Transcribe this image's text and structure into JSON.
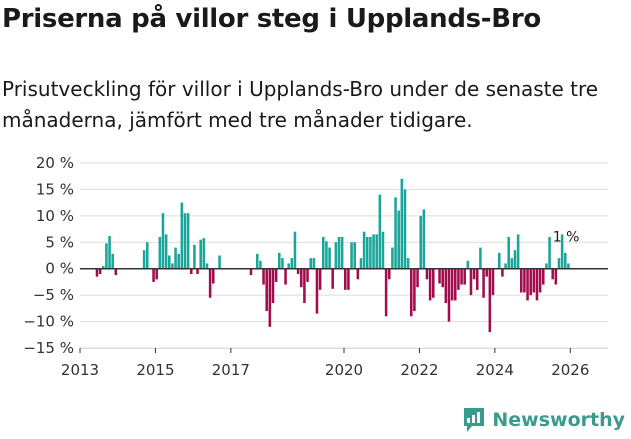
{
  "title": "Priserna på villor steg i Upplands-Bro",
  "subtitle": "Prisutveckling för villor i Upplands-Bro under de senaste tre månaderna, jämfört med tre månader tidigare.",
  "brand": "Newsworthy",
  "colors": {
    "positive": "#1aa59a",
    "negative": "#a10d4c",
    "axis": "#333333",
    "grid": "#dddddd",
    "brand": "#3a9b8c"
  },
  "chart_data": {
    "type": "bar",
    "x_start": {
      "year": 2013,
      "month": 1
    },
    "x_end": {
      "year": 2026,
      "month": 12
    },
    "ylim": [
      -15,
      20
    ],
    "y_ticks": [
      20,
      15,
      10,
      5,
      0,
      -5,
      -10,
      -15
    ],
    "y_tick_labels": [
      "20 %",
      "15 %",
      "10 %",
      "5 %",
      "0 %",
      "−5 %",
      "−10 %",
      "−15 %"
    ],
    "x_ticks": [
      2013,
      2015,
      2017,
      2020,
      2022,
      2024,
      2026
    ],
    "x_tick_labels": [
      "2013",
      "2015",
      "2017",
      "2020",
      "2022",
      "2024",
      "2026"
    ],
    "annotation": {
      "label": "1 %",
      "year": 2025,
      "month": 12,
      "value": 1
    },
    "series": [
      {
        "name": "Prisutveckling",
        "values": [
          [
            2013,
            6,
            -1.5
          ],
          [
            2013,
            7,
            -1
          ],
          [
            2013,
            8,
            0.5
          ],
          [
            2013,
            9,
            4.8
          ],
          [
            2013,
            10,
            6.2
          ],
          [
            2013,
            11,
            2.8
          ],
          [
            2013,
            12,
            -1.2
          ],
          [
            2014,
            9,
            3.5
          ],
          [
            2014,
            10,
            5
          ],
          [
            2014,
            12,
            -2.5
          ],
          [
            2015,
            1,
            -2
          ],
          [
            2015,
            2,
            6
          ],
          [
            2015,
            3,
            10.5
          ],
          [
            2015,
            4,
            6.5
          ],
          [
            2015,
            5,
            2.5
          ],
          [
            2015,
            6,
            1
          ],
          [
            2015,
            7,
            4
          ],
          [
            2015,
            8,
            2.8
          ],
          [
            2015,
            9,
            12.5
          ],
          [
            2015,
            10,
            10.5
          ],
          [
            2015,
            11,
            10.5
          ],
          [
            2015,
            12,
            -1
          ],
          [
            2016,
            1,
            4.5
          ],
          [
            2016,
            2,
            -1
          ],
          [
            2016,
            3,
            5.5
          ],
          [
            2016,
            4,
            5.8
          ],
          [
            2016,
            5,
            1
          ],
          [
            2016,
            6,
            -5.5
          ],
          [
            2016,
            7,
            -2.8
          ],
          [
            2016,
            9,
            2.5
          ],
          [
            2017,
            7,
            -1.2
          ],
          [
            2017,
            9,
            2.8
          ],
          [
            2017,
            10,
            1.5
          ],
          [
            2017,
            11,
            -3
          ],
          [
            2017,
            12,
            -8
          ],
          [
            2018,
            1,
            -11
          ],
          [
            2018,
            2,
            -6.5
          ],
          [
            2018,
            3,
            -2.5
          ],
          [
            2018,
            4,
            3
          ],
          [
            2018,
            5,
            2
          ],
          [
            2018,
            6,
            -3
          ],
          [
            2018,
            7,
            1
          ],
          [
            2018,
            8,
            2
          ],
          [
            2018,
            9,
            7
          ],
          [
            2018,
            10,
            -1
          ],
          [
            2018,
            11,
            -3.5
          ],
          [
            2018,
            12,
            -6.5
          ],
          [
            2019,
            1,
            -2.5
          ],
          [
            2019,
            2,
            2
          ],
          [
            2019,
            3,
            2
          ],
          [
            2019,
            4,
            -8.5
          ],
          [
            2019,
            5,
            -4
          ],
          [
            2019,
            6,
            6
          ],
          [
            2019,
            7,
            5.2
          ],
          [
            2019,
            8,
            4
          ],
          [
            2019,
            9,
            -3.8
          ],
          [
            2019,
            10,
            5
          ],
          [
            2019,
            11,
            6
          ],
          [
            2019,
            12,
            6
          ],
          [
            2020,
            1,
            -4
          ],
          [
            2020,
            2,
            -4
          ],
          [
            2020,
            3,
            5
          ],
          [
            2020,
            4,
            5
          ],
          [
            2020,
            5,
            -2
          ],
          [
            2020,
            6,
            2
          ],
          [
            2020,
            7,
            7
          ],
          [
            2020,
            8,
            6
          ],
          [
            2020,
            9,
            6
          ],
          [
            2020,
            10,
            6.5
          ],
          [
            2020,
            11,
            6.5
          ],
          [
            2020,
            12,
            14
          ],
          [
            2021,
            1,
            7
          ],
          [
            2021,
            2,
            -9
          ],
          [
            2021,
            3,
            -2
          ],
          [
            2021,
            4,
            4
          ],
          [
            2021,
            5,
            13.5
          ],
          [
            2021,
            6,
            11
          ],
          [
            2021,
            7,
            17
          ],
          [
            2021,
            8,
            15
          ],
          [
            2021,
            9,
            2
          ],
          [
            2021,
            10,
            -9
          ],
          [
            2021,
            11,
            -8
          ],
          [
            2021,
            12,
            -3.5
          ],
          [
            2022,
            1,
            10
          ],
          [
            2022,
            2,
            11.2
          ],
          [
            2022,
            3,
            -2
          ],
          [
            2022,
            4,
            -6
          ],
          [
            2022,
            5,
            -5.5
          ],
          [
            2022,
            7,
            -2.8
          ],
          [
            2022,
            8,
            -3.5
          ],
          [
            2022,
            9,
            -6.5
          ],
          [
            2022,
            10,
            -10
          ],
          [
            2022,
            11,
            -6
          ],
          [
            2022,
            12,
            -6
          ],
          [
            2023,
            1,
            -4
          ],
          [
            2023,
            2,
            -3
          ],
          [
            2023,
            3,
            -3
          ],
          [
            2023,
            4,
            1.5
          ],
          [
            2023,
            5,
            -5
          ],
          [
            2023,
            6,
            -2
          ],
          [
            2023,
            7,
            -4
          ],
          [
            2023,
            8,
            4
          ],
          [
            2023,
            9,
            -5.5
          ],
          [
            2023,
            10,
            -1.5
          ],
          [
            2023,
            11,
            -12
          ],
          [
            2023,
            12,
            -5
          ],
          [
            2024,
            2,
            3
          ],
          [
            2024,
            3,
            -1.5
          ],
          [
            2024,
            4,
            1
          ],
          [
            2024,
            5,
            6
          ],
          [
            2024,
            6,
            2
          ],
          [
            2024,
            7,
            3.5
          ],
          [
            2024,
            8,
            6.5
          ],
          [
            2024,
            9,
            -4.5
          ],
          [
            2024,
            10,
            -4.5
          ],
          [
            2024,
            11,
            -6
          ],
          [
            2024,
            12,
            -5
          ],
          [
            2025,
            1,
            -4.5
          ],
          [
            2025,
            2,
            -6
          ],
          [
            2025,
            3,
            -4.5
          ],
          [
            2025,
            4,
            -3
          ],
          [
            2025,
            5,
            1
          ],
          [
            2025,
            6,
            6
          ],
          [
            2025,
            7,
            -2
          ],
          [
            2025,
            8,
            -3
          ],
          [
            2025,
            9,
            2
          ],
          [
            2025,
            10,
            6.5
          ],
          [
            2025,
            11,
            3
          ],
          [
            2025,
            12,
            1
          ]
        ]
      }
    ]
  }
}
